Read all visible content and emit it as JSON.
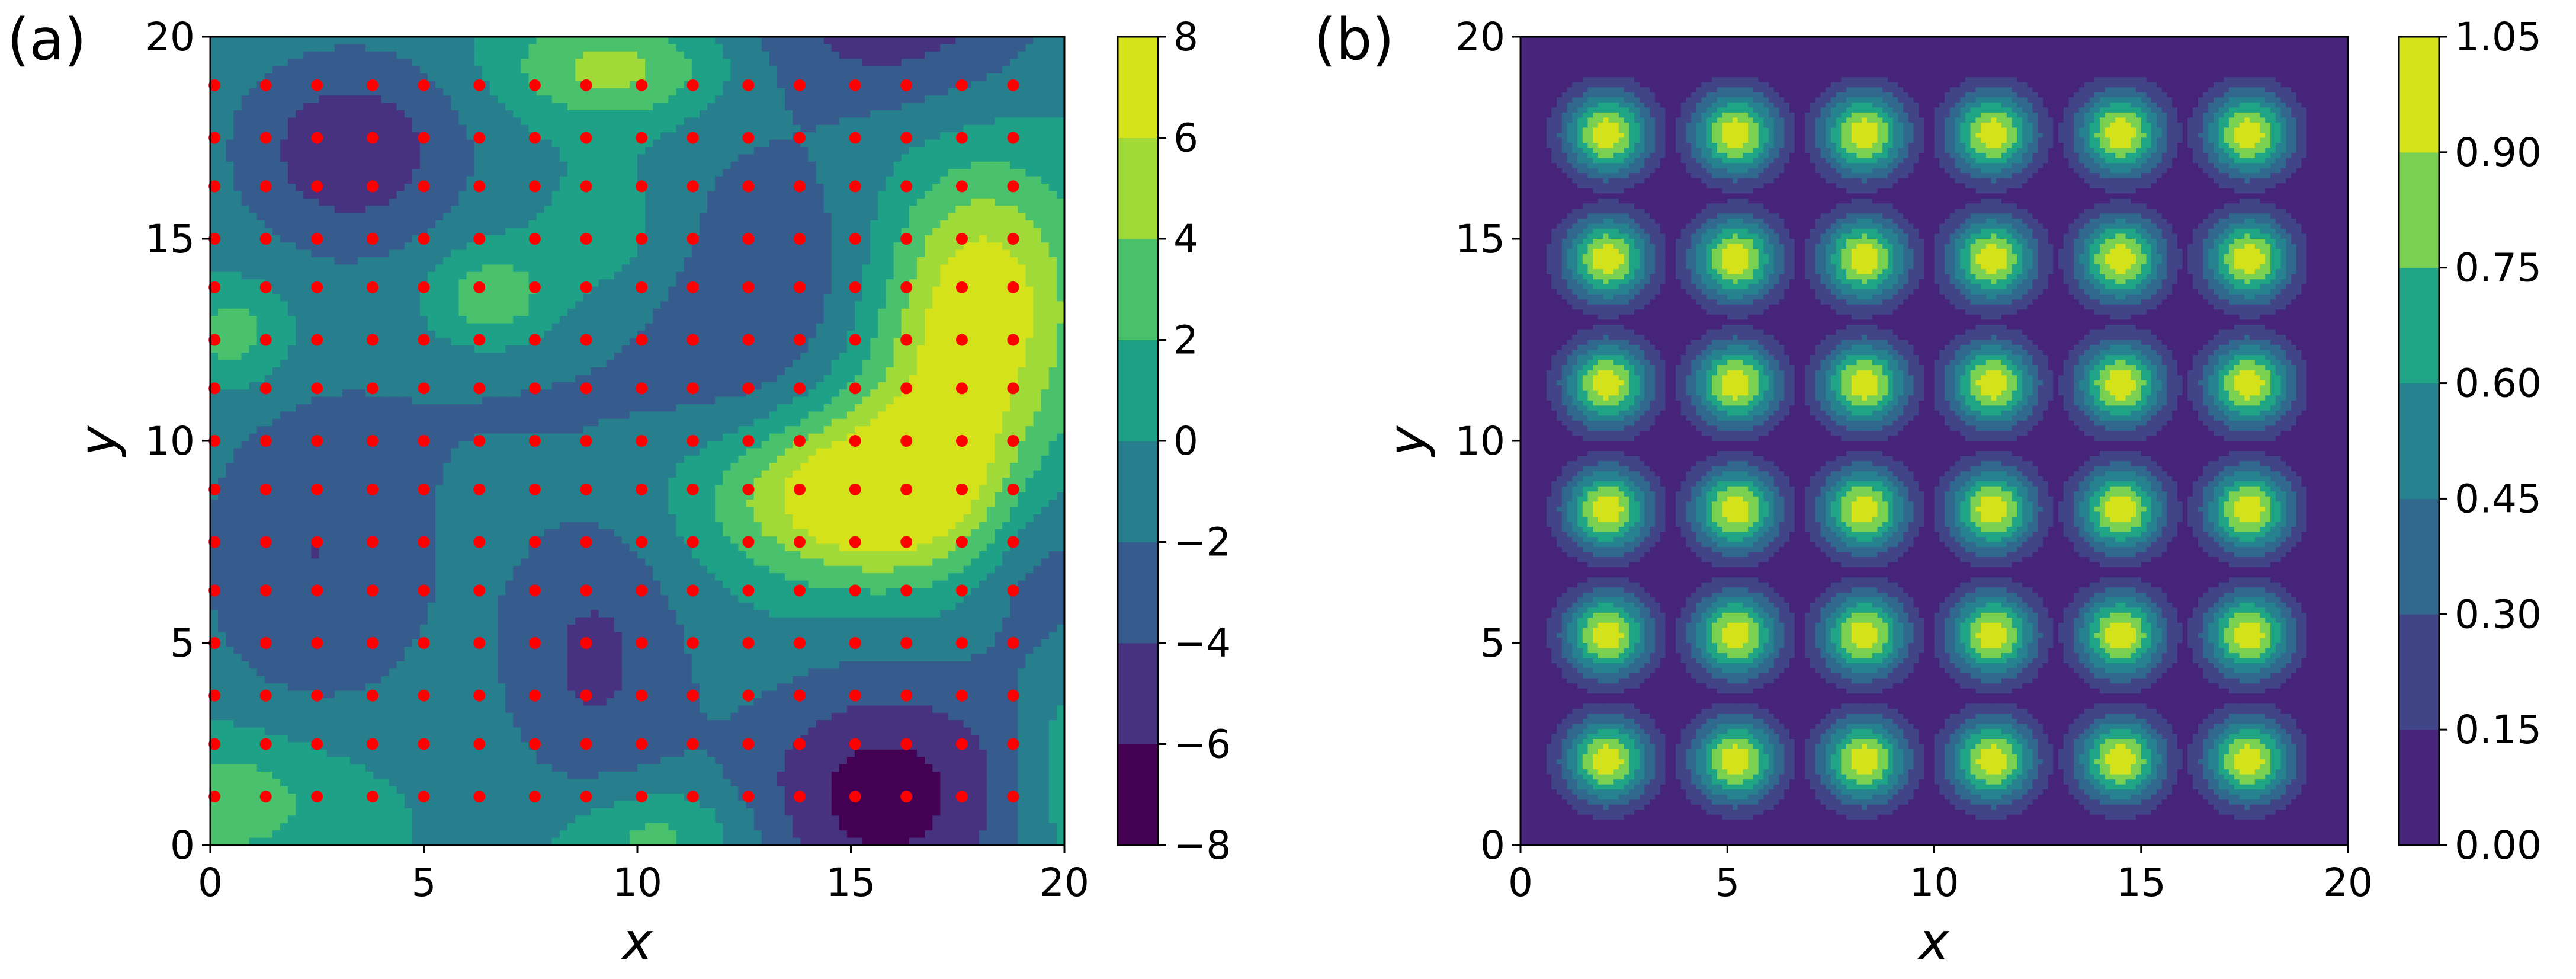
{
  "chart_data": [
    {
      "type": "heatmap",
      "panel_label": "(a)",
      "subtype": "filled-contour with scatter overlay",
      "xlabel": "x",
      "ylabel": "y",
      "xlim": [
        0,
        20
      ],
      "ylim": [
        0,
        20
      ],
      "xticks": [
        "0",
        "5",
        "10",
        "15",
        "20"
      ],
      "yticks": [
        "0",
        "5",
        "10",
        "15",
        "20"
      ],
      "colorbar": {
        "ticks": [
          "8",
          "6",
          "4",
          "2",
          "0",
          "−2",
          "−4",
          "−6",
          "−8"
        ],
        "levels": [
          -8,
          -6,
          -4,
          -2,
          0,
          2,
          4,
          6,
          8
        ],
        "colors": [
          "#440154",
          "#46327e",
          "#365c8d",
          "#277f8e",
          "#1fa187",
          "#4ac16d",
          "#a0da39",
          "#d3e21b"
        ]
      },
      "field_blobs": [
        {
          "x": 3.3,
          "y": 17.2,
          "value": -5.5,
          "sx": 2.0,
          "sy": 1.8
        },
        {
          "x": 12.5,
          "y": 13.5,
          "value": -4.2,
          "sx": 2.6,
          "sy": 3.0
        },
        {
          "x": 16.0,
          "y": 20.5,
          "value": -5.0,
          "sx": 2.5,
          "sy": 1.6
        },
        {
          "x": 15.8,
          "y": 1.2,
          "value": -7.0,
          "sx": 2.4,
          "sy": 2.2
        },
        {
          "x": 9.0,
          "y": 4.6,
          "value": -4.3,
          "sx": 1.6,
          "sy": 2.6
        },
        {
          "x": 2.5,
          "y": 7.2,
          "value": -4.0,
          "sx": 2.2,
          "sy": 3.2
        },
        {
          "x": 19.5,
          "y": 7.2,
          "value": -3.5,
          "sx": 1.2,
          "sy": 2.4
        },
        {
          "x": 7.0,
          "y": 11.0,
          "value": -1.5,
          "sx": 2.0,
          "sy": 1.5
        },
        {
          "x": 18.0,
          "y": 14.0,
          "value": 6.8,
          "sx": 1.6,
          "sy": 2.0
        },
        {
          "x": 15.8,
          "y": 8.5,
          "value": 6.0,
          "sx": 2.2,
          "sy": 1.5
        },
        {
          "x": 17.5,
          "y": 11.0,
          "value": 5.0,
          "sx": 2.0,
          "sy": 1.8
        },
        {
          "x": 9.5,
          "y": 19.2,
          "value": 5.0,
          "sx": 1.8,
          "sy": 0.9
        },
        {
          "x": 6.6,
          "y": 13.5,
          "value": 4.2,
          "sx": 1.0,
          "sy": 0.9
        },
        {
          "x": 14.5,
          "y": 8.8,
          "value": 4.0,
          "sx": 2.5,
          "sy": 1.3
        },
        {
          "x": 0.5,
          "y": 1.2,
          "value": 3.5,
          "sx": 2.0,
          "sy": 1.2
        },
        {
          "x": 10.5,
          "y": 0.3,
          "value": 3.5,
          "sx": 1.5,
          "sy": 0.8
        },
        {
          "x": 0.6,
          "y": 12.6,
          "value": 3.5,
          "sx": 0.9,
          "sy": 0.9
        },
        {
          "x": 9.8,
          "y": 15.0,
          "value": 2.5,
          "sx": 1.4,
          "sy": 1.6
        },
        {
          "x": 20.0,
          "y": 2.0,
          "value": 2.5,
          "sx": 0.8,
          "sy": 2.0
        }
      ],
      "scatter_points": {
        "color": "#ff0000",
        "x": [
          0.1,
          1.3,
          2.5,
          3.8,
          5.0,
          6.3,
          7.6,
          8.8,
          10.1,
          11.3,
          12.6,
          13.8,
          15.1,
          16.3,
          17.6,
          18.8
        ],
        "y": [
          1.2,
          2.5,
          3.7,
          5.0,
          6.3,
          7.5,
          8.8,
          10.0,
          11.3,
          12.5,
          13.8,
          15.0,
          16.3,
          17.5,
          18.8
        ],
        "note": "grid of 16 x 15 points"
      }
    },
    {
      "type": "heatmap",
      "panel_label": "(b)",
      "subtype": "filled-contour",
      "xlabel": "x",
      "ylabel": "y",
      "xlim": [
        0,
        20
      ],
      "ylim": [
        0,
        20
      ],
      "xticks": [
        "0",
        "5",
        "10",
        "15",
        "20"
      ],
      "yticks": [
        "0",
        "5",
        "10",
        "15",
        "20"
      ],
      "colorbar": {
        "ticks": [
          "1.05",
          "0.90",
          "0.75",
          "0.60",
          "0.45",
          "0.30",
          "0.15",
          "0.00"
        ],
        "levels": [
          0.0,
          0.15,
          0.3,
          0.45,
          0.6,
          0.75,
          0.9,
          1.05
        ],
        "colors": [
          "#46247a",
          "#414487",
          "#31688e",
          "#26828e",
          "#20a486",
          "#7ad151",
          "#d3e21b"
        ]
      },
      "gaussian_centers": {
        "x": [
          2.1,
          5.2,
          8.3,
          11.4,
          14.5,
          17.6
        ],
        "y": [
          2.1,
          5.2,
          8.3,
          11.4,
          14.5,
          17.6
        ],
        "peak": 1.0,
        "sigma": 0.75
      }
    }
  ]
}
